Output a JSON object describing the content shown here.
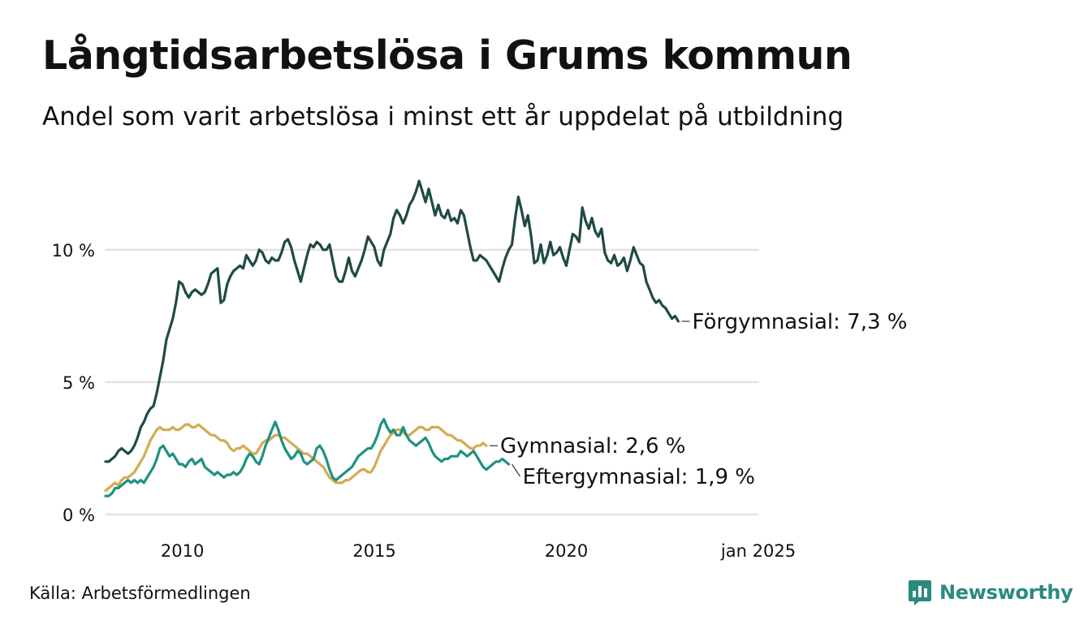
{
  "title": "Långtidsarbetslösa i Grums kommun",
  "subtitle": "Andel som varit arbetslösa i minst ett år uppdelat på utbildning",
  "source": "Källa: Arbetsförmedlingen",
  "brand": {
    "name": "Newsworthy",
    "icon": "newsworthy-logo-icon",
    "color": "#2a8a7c"
  },
  "chart_data": {
    "type": "line",
    "title": "Långtidsarbetslösa i Grums kommun",
    "subtitle": "Andel som varit arbetslösa i minst ett år uppdelat på utbildning",
    "xlabel": "",
    "ylabel": "",
    "x_start": 2008.0,
    "x_step": 0.08333,
    "xlim": [
      2008.0,
      2025.0
    ],
    "ylim": [
      0,
      13
    ],
    "y_ticks": [
      {
        "value": 0,
        "label": "0 %"
      },
      {
        "value": 5,
        "label": "5 %"
      },
      {
        "value": 10,
        "label": "10 %"
      }
    ],
    "x_ticks": [
      {
        "value": 2010.0,
        "label": "2010"
      },
      {
        "value": 2015.0,
        "label": "2015"
      },
      {
        "value": 2020.0,
        "label": "2020"
      },
      {
        "value": 2025.0,
        "label": "jan 2025"
      }
    ],
    "grid": true,
    "legend": "end-of-line labels",
    "series": [
      {
        "name": "Förgymnasial",
        "end_label": "Förgymnasial: 7,3 %",
        "color": "#1f4a43",
        "values": [
          2.0,
          2.0,
          2.1,
          2.2,
          2.4,
          2.5,
          2.4,
          2.3,
          2.4,
          2.6,
          2.9,
          3.3,
          3.5,
          3.8,
          4.0,
          4.1,
          4.6,
          5.2,
          5.8,
          6.6,
          7.0,
          7.4,
          8.0,
          8.8,
          8.7,
          8.4,
          8.2,
          8.4,
          8.5,
          8.4,
          8.3,
          8.4,
          8.7,
          9.1,
          9.2,
          9.3,
          8.0,
          8.1,
          8.7,
          9.0,
          9.2,
          9.3,
          9.4,
          9.3,
          9.8,
          9.6,
          9.4,
          9.6,
          10.0,
          9.9,
          9.6,
          9.5,
          9.7,
          9.6,
          9.6,
          9.9,
          10.3,
          10.4,
          10.1,
          9.6,
          9.2,
          8.8,
          9.3,
          9.8,
          10.2,
          10.1,
          10.3,
          10.2,
          10.0,
          10.0,
          10.2,
          9.6,
          9.0,
          8.8,
          8.8,
          9.2,
          9.7,
          9.2,
          9.0,
          9.3,
          9.6,
          10.0,
          10.5,
          10.3,
          10.1,
          9.6,
          9.4,
          10.0,
          10.3,
          10.6,
          11.2,
          11.5,
          11.3,
          11.0,
          11.3,
          11.7,
          11.9,
          12.2,
          12.6,
          12.2,
          11.8,
          12.3,
          11.8,
          11.3,
          11.7,
          11.3,
          11.2,
          11.5,
          11.1,
          11.2,
          11.0,
          11.5,
          11.3,
          10.7,
          10.1,
          9.6,
          9.6,
          9.8,
          9.7,
          9.6,
          9.4,
          9.2,
          9.0,
          8.8,
          9.3,
          9.7,
          10.0,
          10.2,
          11.2,
          12.0,
          11.5,
          10.9,
          11.3,
          10.5,
          9.5,
          9.6,
          10.2,
          9.5,
          9.8,
          10.3,
          9.8,
          9.9,
          10.1,
          9.7,
          9.4,
          10.0,
          10.6,
          10.5,
          10.3,
          11.6,
          11.1,
          10.8,
          11.2,
          10.7,
          10.5,
          10.8,
          9.9,
          9.6,
          9.5,
          9.8,
          9.4,
          9.5,
          9.7,
          9.2,
          9.6,
          10.1,
          9.8,
          9.5,
          9.4,
          8.8,
          8.5,
          8.2,
          8.0,
          8.1,
          7.9,
          7.8,
          7.6,
          7.4,
          7.5,
          7.3
        ]
      },
      {
        "name": "Gymnasial",
        "end_label": "Gymnasial: 2,6 %",
        "color": "#d4aa54",
        "values": [
          0.9,
          1.0,
          1.1,
          1.2,
          1.1,
          1.3,
          1.4,
          1.4,
          1.5,
          1.6,
          1.8,
          2.0,
          2.2,
          2.5,
          2.8,
          3.0,
          3.2,
          3.3,
          3.2,
          3.2,
          3.2,
          3.3,
          3.2,
          3.2,
          3.3,
          3.4,
          3.4,
          3.3,
          3.3,
          3.4,
          3.3,
          3.2,
          3.1,
          3.0,
          3.0,
          2.9,
          2.8,
          2.8,
          2.7,
          2.5,
          2.4,
          2.5,
          2.5,
          2.6,
          2.5,
          2.4,
          2.3,
          2.3,
          2.5,
          2.7,
          2.8,
          2.8,
          2.9,
          3.0,
          3.0,
          2.9,
          2.9,
          2.8,
          2.7,
          2.6,
          2.5,
          2.4,
          2.3,
          2.3,
          2.2,
          2.1,
          2.0,
          1.9,
          1.8,
          1.6,
          1.4,
          1.3,
          1.2,
          1.2,
          1.2,
          1.3,
          1.3,
          1.4,
          1.5,
          1.6,
          1.7,
          1.7,
          1.6,
          1.6,
          1.8,
          2.1,
          2.4,
          2.6,
          2.8,
          3.0,
          3.1,
          3.2,
          3.2,
          3.1,
          3.0,
          3.0,
          3.1,
          3.2,
          3.3,
          3.3,
          3.2,
          3.2,
          3.3,
          3.3,
          3.3,
          3.2,
          3.1,
          3.0,
          3.0,
          2.9,
          2.8,
          2.8,
          2.7,
          2.6,
          2.5,
          2.5,
          2.6,
          2.6,
          2.7,
          2.6
        ]
      },
      {
        "name": "Eftergymnasial",
        "end_label": "Eftergymnasial: 1,9 %",
        "color": "#1f9180",
        "values": [
          0.7,
          0.7,
          0.8,
          1.0,
          1.0,
          1.1,
          1.2,
          1.3,
          1.2,
          1.3,
          1.2,
          1.3,
          1.2,
          1.4,
          1.6,
          1.8,
          2.1,
          2.5,
          2.6,
          2.4,
          2.2,
          2.3,
          2.1,
          1.9,
          1.9,
          1.8,
          2.0,
          2.1,
          1.9,
          2.0,
          2.1,
          1.8,
          1.7,
          1.6,
          1.5,
          1.6,
          1.5,
          1.4,
          1.5,
          1.5,
          1.6,
          1.5,
          1.6,
          1.8,
          2.1,
          2.3,
          2.2,
          2.0,
          1.9,
          2.2,
          2.6,
          2.9,
          3.2,
          3.5,
          3.2,
          2.8,
          2.5,
          2.3,
          2.1,
          2.2,
          2.4,
          2.3,
          2.0,
          1.9,
          2.0,
          2.1,
          2.5,
          2.6,
          2.4,
          2.1,
          1.7,
          1.4,
          1.3,
          1.4,
          1.5,
          1.6,
          1.7,
          1.8,
          2.0,
          2.2,
          2.3,
          2.4,
          2.5,
          2.5,
          2.7,
          3.0,
          3.4,
          3.6,
          3.3,
          3.1,
          3.2,
          3.0,
          3.0,
          3.3,
          3.0,
          2.8,
          2.7,
          2.6,
          2.7,
          2.8,
          2.9,
          2.7,
          2.4,
          2.2,
          2.1,
          2.0,
          2.1,
          2.1,
          2.2,
          2.2,
          2.2,
          2.4,
          2.3,
          2.2,
          2.3,
          2.4,
          2.2,
          2.0,
          1.8,
          1.7,
          1.8,
          1.9,
          2.0,
          2.0,
          2.1,
          2.0,
          1.9
        ]
      }
    ]
  }
}
